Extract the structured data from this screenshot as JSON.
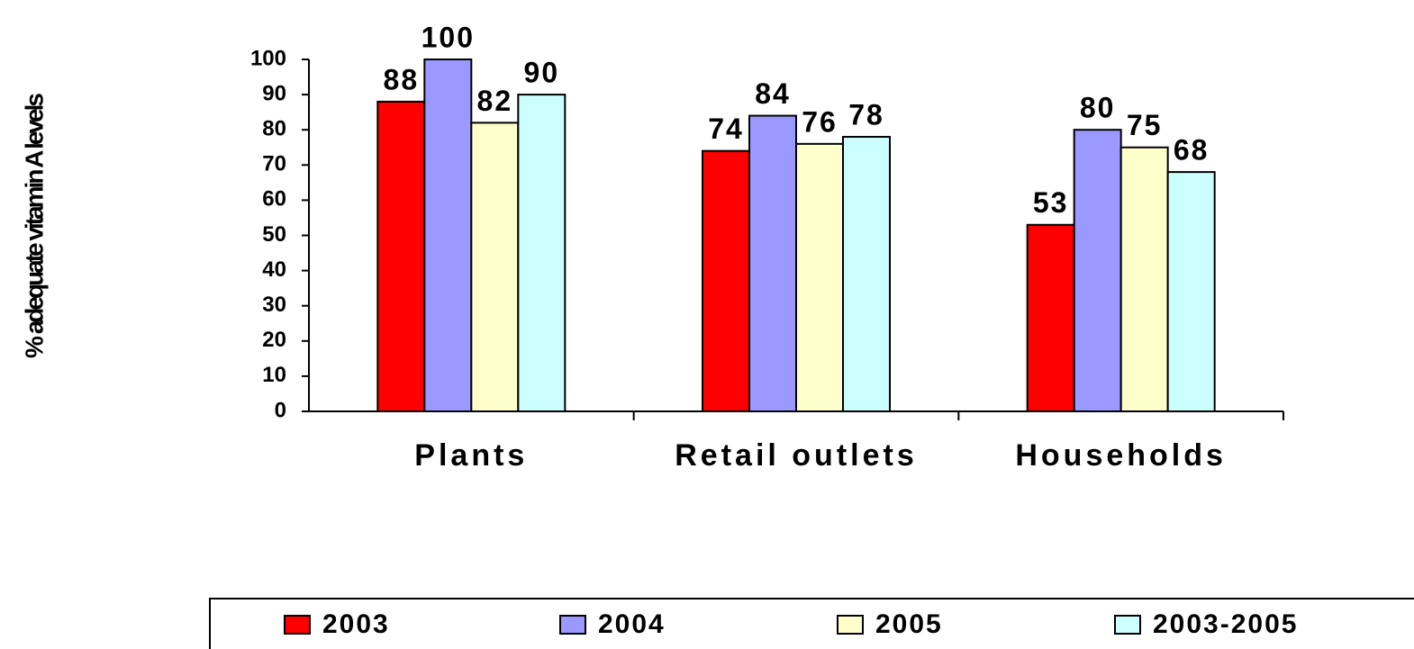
{
  "chart_data": {
    "type": "bar",
    "y_label": "% adequate vitamin A levels",
    "categories": [
      "Plants",
      "Retail outlets",
      "Households"
    ],
    "series": [
      {
        "name": "2003",
        "color": "#ff0000",
        "values": [
          88,
          74,
          53
        ]
      },
      {
        "name": "2004",
        "color": "#9999ff",
        "values": [
          100,
          84,
          80
        ]
      },
      {
        "name": "2005",
        "color": "#ffffcc",
        "values": [
          82,
          76,
          75
        ]
      },
      {
        "name": "2003-2005",
        "color": "#ccffff",
        "values": [
          90,
          78,
          68
        ]
      }
    ],
    "ylim": [
      0,
      100
    ],
    "yticks": [
      0,
      10,
      20,
      30,
      40,
      50,
      60,
      70,
      80,
      90,
      100
    ],
    "legend": "bottom"
  }
}
